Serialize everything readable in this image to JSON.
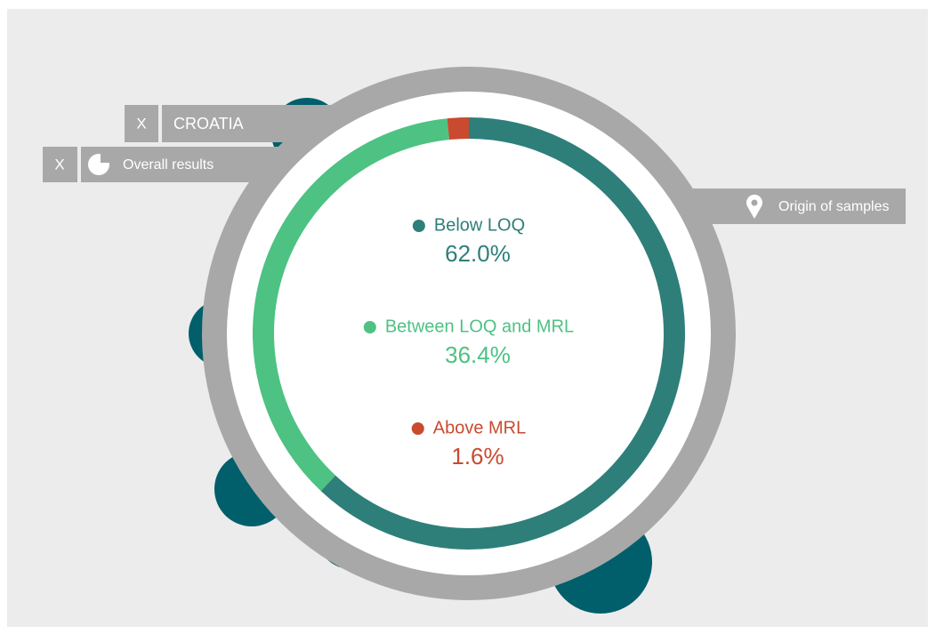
{
  "chart_data": {
    "type": "donut",
    "categories": [
      "Below LOQ",
      "Between LOQ and MRL",
      "Above MRL"
    ],
    "values": [
      62.0,
      36.4,
      1.6
    ],
    "value_labels": [
      "62.0%",
      "36.4%",
      "1.6%"
    ],
    "colors": [
      "#2e7f7a",
      "#4dc283",
      "#c94a2f"
    ]
  },
  "filters": [
    {
      "close": "X",
      "label": "CROATIA"
    },
    {
      "close": "X",
      "label": "Overall results"
    }
  ],
  "origin_button": "Origin of samples"
}
